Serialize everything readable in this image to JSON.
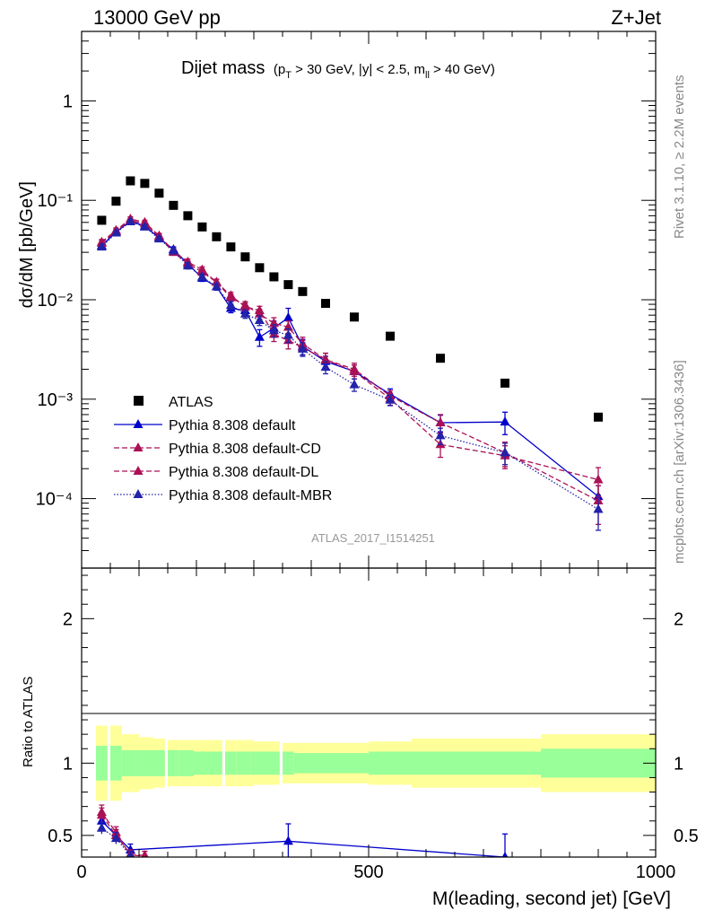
{
  "header": {
    "left": "13000 GeV pp",
    "right": "Z+Jet"
  },
  "side": {
    "rivet": "Rivet 3.1.10, ≥ 2.2M events",
    "site": "mcplots.cern.ch [arXiv:1306.3436]"
  },
  "chart_data": {
    "type": "scatter",
    "title": "Dijet mass",
    "title_cuts": {
      "p1": "(p",
      "p1_sub": "T",
      "p2": " > 30 GeV, |y| < 2.5, m",
      "p2_sub": "ll",
      "p3": " > 40 GeV)"
    },
    "analysis_tag": "ATLAS_2017_I1514251",
    "ylabel": "dσ/dM [pb/GeV]",
    "ratio_ylabel": "Ratio to ATLAS",
    "xlabel": "M(leading, second jet) [GeV]",
    "xlim": [
      0,
      1000
    ],
    "ylim": [
      2e-05,
      5
    ],
    "yscale": "log",
    "ratio_ylim": [
      0.35,
      2.35
    ],
    "x_ticks": [
      "0",
      "500",
      "1000"
    ],
    "y_ticks": {
      "1": "1",
      "0.1": "10⁻¹",
      "0.01": "10⁻²",
      "0.001": "10⁻³",
      "0.0001": "10⁻⁴"
    },
    "ratio_ticks": [
      "0.5",
      "1",
      "2"
    ],
    "x": [
      35,
      60,
      85,
      110,
      135,
      160,
      185,
      210,
      235,
      260,
      285,
      310,
      335,
      360,
      385,
      425,
      475,
      537.5,
      625,
      737.5,
      900
    ],
    "x_err": [
      10,
      10,
      15,
      15,
      10,
      10,
      15,
      15,
      10,
      10,
      15,
      15,
      10,
      10,
      15,
      25,
      25,
      37.5,
      50,
      62.5,
      100
    ],
    "series": [
      {
        "name": "ATLAS",
        "color": "#000000",
        "marker": "square",
        "values": [
          0.063,
          0.098,
          0.157,
          0.148,
          0.118,
          0.089,
          0.07,
          0.054,
          0.043,
          0.034,
          0.027,
          0.021,
          0.017,
          0.0142,
          0.0121,
          0.0092,
          0.0067,
          0.0043,
          0.00258,
          0.00145,
          0.00066
        ],
        "band_inner": [
          0.12,
          0.12,
          0.09,
          0.09,
          0.09,
          0.09,
          0.09,
          0.08,
          0.08,
          0.08,
          0.08,
          0.08,
          0.08,
          0.08,
          0.07,
          0.07,
          0.07,
          0.08,
          0.08,
          0.08,
          0.1
        ],
        "band_outer": [
          0.26,
          0.26,
          0.2,
          0.18,
          0.17,
          0.16,
          0.16,
          0.16,
          0.16,
          0.16,
          0.16,
          0.15,
          0.15,
          0.14,
          0.14,
          0.14,
          0.14,
          0.15,
          0.17,
          0.17,
          0.2
        ]
      },
      {
        "name": "Pythia 8.308 default",
        "color": "#0000cc",
        "style": "solid",
        "values": [
          0.035,
          0.048,
          0.062,
          0.055,
          0.042,
          0.032,
          0.023,
          0.0165,
          0.0135,
          0.0082,
          0.0078,
          0.0042,
          0.0052,
          0.0066,
          0.0034,
          0.0024,
          0.0019,
          0.00112,
          0.00058,
          0.00059,
          0.000105
        ],
        "errors": [
          0.0022,
          0.0026,
          0.0032,
          0.0029,
          0.0024,
          0.002,
          0.0016,
          0.0012,
          0.001,
          0.0008,
          0.0007,
          0.0008,
          0.0009,
          0.0016,
          0.0006,
          0.0003,
          0.0003,
          0.00015,
          0.00011,
          0.00015,
          3e-05
        ]
      },
      {
        "name": "Pythia 8.308 default-CD",
        "color": "#aa1155",
        "style": "dashed",
        "values": [
          0.038,
          0.05,
          0.065,
          0.06,
          0.044,
          0.031,
          0.024,
          0.02,
          0.015,
          0.011,
          0.0085,
          0.0078,
          0.0045,
          0.0039,
          0.0033,
          0.0025,
          0.0019,
          0.00101,
          0.00035,
          0.00027,
          0.000155
        ],
        "errors": [
          0.0024,
          0.0028,
          0.0034,
          0.003,
          0.0025,
          0.002,
          0.0017,
          0.0014,
          0.0011,
          0.0009,
          0.0008,
          0.0008,
          0.0007,
          0.0007,
          0.0006,
          0.0004,
          0.0003,
          0.00014,
          9e-05,
          7e-05,
          5e-05
        ]
      },
      {
        "name": "Pythia 8.308 default-DL",
        "color": "#aa1155",
        "style": "dashed",
        "values": [
          0.037,
          0.049,
          0.063,
          0.058,
          0.043,
          0.03,
          0.023,
          0.019,
          0.015,
          0.0105,
          0.0088,
          0.0072,
          0.0058,
          0.0053,
          0.0036,
          0.0025,
          0.002,
          0.00108,
          0.00058,
          0.00029,
          9.5e-05
        ],
        "errors": [
          0.0023,
          0.0027,
          0.0033,
          0.003,
          0.0025,
          0.002,
          0.0016,
          0.0013,
          0.0011,
          0.0009,
          0.0008,
          0.0008,
          0.0008,
          0.0008,
          0.0006,
          0.0004,
          0.0003,
          0.00014,
          0.00012,
          8e-05,
          4e-05
        ]
      },
      {
        "name": "Pythia 8.308 default-MBR",
        "color": "#2222aa",
        "style": "dotted",
        "values": [
          0.034,
          0.047,
          0.061,
          0.054,
          0.041,
          0.031,
          0.022,
          0.017,
          0.0135,
          0.0088,
          0.0072,
          0.0062,
          0.0049,
          0.0044,
          0.0032,
          0.0021,
          0.0014,
          0.00098,
          0.00043,
          0.00029,
          7.8e-05
        ],
        "errors": [
          0.0022,
          0.0026,
          0.0032,
          0.0029,
          0.0024,
          0.002,
          0.0016,
          0.0012,
          0.001,
          0.0008,
          0.0007,
          0.0007,
          0.0007,
          0.0007,
          0.0005,
          0.0003,
          0.0002,
          0.00012,
          8e-05,
          7e-05,
          3e-05
        ]
      }
    ],
    "ratio": [
      {
        "name": "Pythia 8.308 default",
        "x": [
          35,
          60,
          85,
          360,
          737.5
        ],
        "values": [
          0.6,
          0.5,
          0.4,
          0.46,
          0.35
        ],
        "errors": [
          0.04,
          0.04,
          0.04,
          0.12,
          0.16
        ]
      },
      {
        "name": "Pythia 8.308 default-CD",
        "x": [
          35,
          60,
          85,
          110
        ],
        "values": [
          0.66,
          0.52,
          0.36,
          0.36
        ],
        "errors": [
          0.05,
          0.04,
          0.03,
          0.03
        ]
      },
      {
        "name": "Pythia 8.308 default-DL",
        "x": [
          35,
          60,
          85,
          110
        ],
        "values": [
          0.64,
          0.5,
          0.37,
          0.36
        ],
        "errors": [
          0.05,
          0.04,
          0.03,
          0.03
        ]
      },
      {
        "name": "Pythia 8.308 default-MBR",
        "x": [
          35,
          60,
          85
        ],
        "values": [
          0.55,
          0.48,
          0.36
        ],
        "errors": [
          0.04,
          0.04,
          0.03
        ]
      }
    ]
  }
}
